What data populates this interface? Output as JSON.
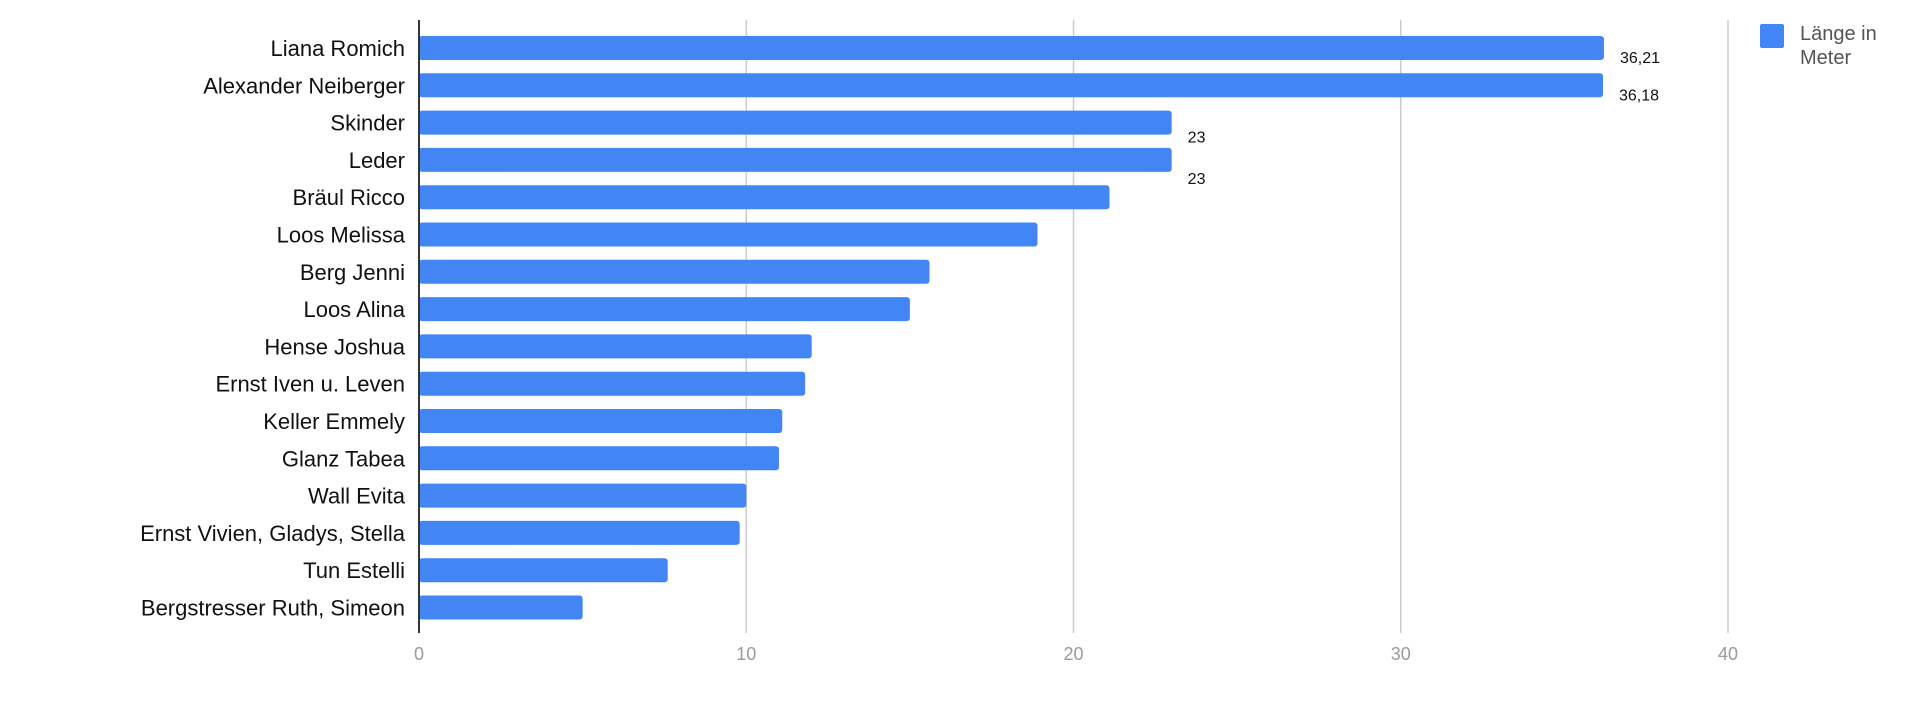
{
  "chart_data": {
    "type": "bar",
    "orientation": "horizontal",
    "categories": [
      "Liana Romich",
      "Alexander Neiberger",
      "Skinder",
      "Leder",
      "Bräul Ricco",
      "Loos Melissa",
      "Berg Jenni",
      "Loos Alina",
      "Hense Joshua",
      "Ernst Iven u. Leven",
      "Keller Emmely",
      "Glanz Tabea",
      "Wall Evita",
      "Ernst Vivien, Gladys, Stella",
      "Tun Estelli",
      "Bergstresser Ruth, Simeon"
    ],
    "series": [
      {
        "name": "Länge in Meter",
        "color": "#4285f4",
        "values": [
          36.21,
          36.18,
          23,
          23,
          21.1,
          18.9,
          15.6,
          15.0,
          12.0,
          11.8,
          11.1,
          11.0,
          10.0,
          9.8,
          7.6,
          5.0
        ],
        "data_labels": [
          "36,21",
          "36,18",
          "23",
          "23",
          "",
          "",
          "",
          "",
          "",
          "",
          "",
          "",
          "",
          "",
          "",
          ""
        ]
      }
    ],
    "xlim": [
      0,
      40
    ],
    "xticks": [
      "0",
      "10",
      "20",
      "30",
      "40"
    ],
    "xtick_values": [
      0,
      10,
      20,
      30,
      40
    ],
    "grid": true,
    "legend": {
      "position": "top-right",
      "label_lines": [
        "Länge in",
        "Meter"
      ]
    }
  }
}
